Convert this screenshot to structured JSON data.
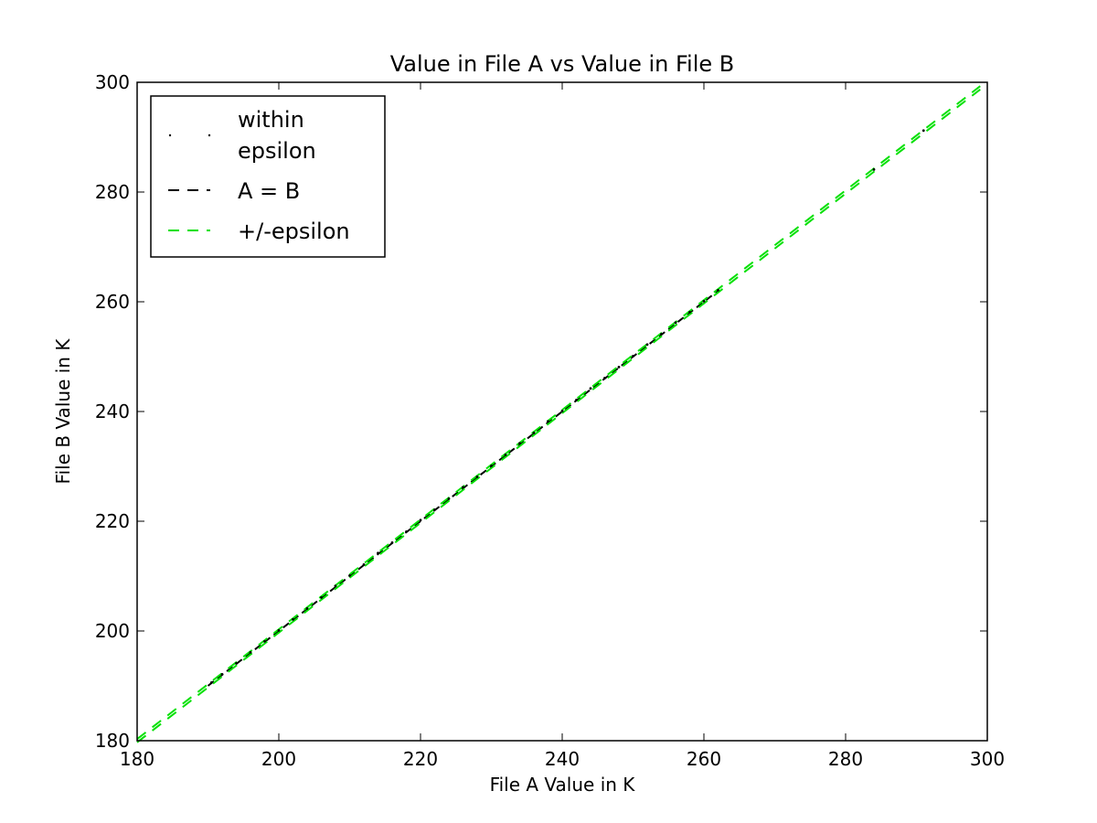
{
  "chart_data": {
    "type": "scatter",
    "title": "Value in File A vs Value in File B",
    "xlabel": "File A Value in K",
    "ylabel": "File B Value in K",
    "xlim": [
      180,
      300
    ],
    "ylim": [
      180,
      300
    ],
    "xticks": [
      "180",
      "200",
      "220",
      "240",
      "260",
      "280",
      "300"
    ],
    "yticks": [
      "180",
      "200",
      "220",
      "240",
      "260",
      "280",
      "300"
    ],
    "grid": false,
    "legend_position": "top-left",
    "epsilon": 0.3,
    "series": [
      {
        "name": "within epsilon",
        "kind": "points",
        "color": "#000000",
        "points": [
          [
            190.5,
            190.6
          ],
          [
            192.0,
            192.1
          ],
          [
            194.0,
            194.1
          ],
          [
            196.0,
            196.1
          ],
          [
            198.0,
            198.1
          ],
          [
            200.0,
            200.1
          ],
          [
            202.0,
            202.1
          ],
          [
            204.0,
            204.1
          ],
          [
            206.0,
            206.1
          ],
          [
            208.0,
            208.2
          ],
          [
            210.0,
            210.1
          ],
          [
            212.0,
            212.1
          ],
          [
            214.0,
            214.2
          ],
          [
            216.0,
            216.1
          ],
          [
            218.0,
            218.1
          ],
          [
            220.0,
            220.2
          ],
          [
            222.0,
            222.1
          ],
          [
            224.0,
            224.1
          ],
          [
            226.0,
            226.2
          ],
          [
            228.0,
            228.1
          ],
          [
            230.0,
            230.1
          ],
          [
            232.0,
            232.1
          ],
          [
            234.0,
            234.2
          ],
          [
            236.0,
            236.1
          ],
          [
            238.0,
            238.2
          ],
          [
            240.0,
            240.1
          ],
          [
            242.0,
            242.1
          ],
          [
            244.0,
            244.2
          ],
          [
            246.0,
            246.1
          ],
          [
            248.0,
            248.1
          ],
          [
            250.0,
            250.1
          ],
          [
            252.0,
            252.2
          ],
          [
            254.0,
            254.1
          ],
          [
            256.0,
            256.2
          ],
          [
            258.0,
            258.1
          ],
          [
            260.0,
            260.1
          ],
          [
            262.0,
            262.1
          ],
          [
            284.0,
            284.1
          ],
          [
            291.0,
            291.2
          ]
        ]
      },
      {
        "name": "A = B",
        "kind": "line",
        "color": "#000000",
        "dash": "dashed",
        "x": [
          190,
          262
        ],
        "y": [
          190,
          262
        ]
      },
      {
        "name": "+/-epsilon",
        "kind": "line",
        "color": "#00e000",
        "dash": "dashed",
        "x": [
          180,
          299
        ],
        "y": [
          180,
          299
        ]
      }
    ]
  }
}
